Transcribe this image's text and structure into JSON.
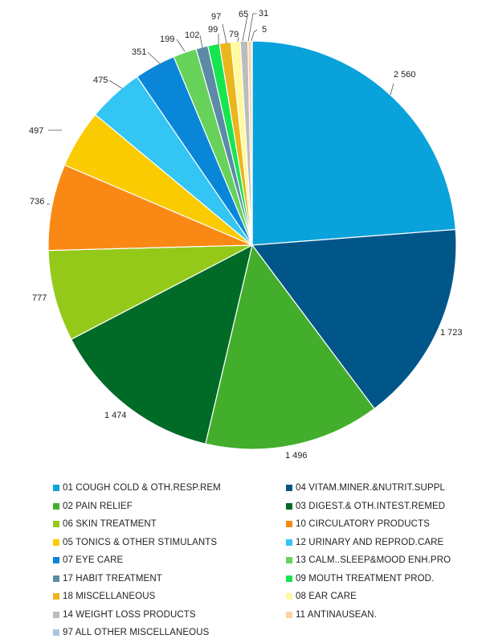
{
  "chart_data": {
    "type": "pie",
    "title": "",
    "series": [
      {
        "name": "01 COUGH COLD & OTH.RESP.REM",
        "value": 2560,
        "label": "2 560",
        "color": "#0AA2DB"
      },
      {
        "name": "04 VITAM.MINER.&NUTRIT.SUPPL",
        "value": 1723,
        "label": "1 723",
        "color": "#005689"
      },
      {
        "name": "02 PAIN RELIEF",
        "value": 1496,
        "label": "1 496",
        "color": "#43AE2C"
      },
      {
        "name": "03 DIGEST.& OTH.INTEST.REMED",
        "value": 1474,
        "label": "1 474",
        "color": "#006A27"
      },
      {
        "name": "06 SKIN TREATMENT",
        "value": 777,
        "label": "777",
        "color": "#94C91A"
      },
      {
        "name": "10 CIRCULATORY PRODUCTS",
        "value": 736,
        "label": "736",
        "color": "#F98914"
      },
      {
        "name": "05 TONICS & OTHER STIMULANTS",
        "value": 497,
        "label": "497",
        "color": "#FACB00"
      },
      {
        "name": "12 URINARY AND REPROD.CARE",
        "value": 475,
        "label": "475",
        "color": "#33C5F3"
      },
      {
        "name": "07 EYE CARE",
        "value": 351,
        "label": "351",
        "color": "#0A86D9"
      },
      {
        "name": "13 CALM..SLEEP&MOOD ENH.PRO",
        "value": 199,
        "label": "199",
        "color": "#66D25A"
      },
      {
        "name": "17 HABIT TREATMENT",
        "value": 102,
        "label": "102",
        "color": "#5C8AA7"
      },
      {
        "name": "09 MOUTH TREATMENT PROD.",
        "value": 99,
        "label": "99",
        "color": "#17E54F"
      },
      {
        "name": "18 MISCELLANEOUS",
        "value": 97,
        "label": "97",
        "color": "#EBB51C"
      },
      {
        "name": "08 EAR CARE",
        "value": 79,
        "label": "79",
        "color": "#FFFA9E"
      },
      {
        "name": "14 WEIGHT LOSS PRODUCTS",
        "value": 65,
        "label": "65",
        "color": "#BCBCBC"
      },
      {
        "name": "11 ANTINAUSEAN.",
        "value": 31,
        "label": "31",
        "color": "#FCD2A0"
      },
      {
        "name": "97 ALL OTHER MISCELLANEOUS",
        "value": 5,
        "label": "5",
        "color": "#A9C6E0"
      }
    ],
    "legend_position": "bottom",
    "legend": [
      "01 COUGH COLD & OTH.RESP.REM",
      "04 VITAM.MINER.&NUTRIT.SUPPL",
      "02 PAIN RELIEF",
      "03 DIGEST.& OTH.INTEST.REMED",
      "06 SKIN TREATMENT",
      "10 CIRCULATORY PRODUCTS",
      "05 TONICS & OTHER STIMULANTS",
      "12 URINARY AND REPROD.CARE",
      "07 EYE CARE",
      "13 CALM..SLEEP&MOOD ENH.PRO",
      "17 HABIT TREATMENT",
      "09 MOUTH TREATMENT PROD.",
      "18 MISCELLANEOUS",
      "08 EAR CARE",
      "14 WEIGHT LOSS PRODUCTS",
      "11 ANTINAUSEAN.",
      "97 ALL OTHER MISCELLANEOUS"
    ]
  }
}
